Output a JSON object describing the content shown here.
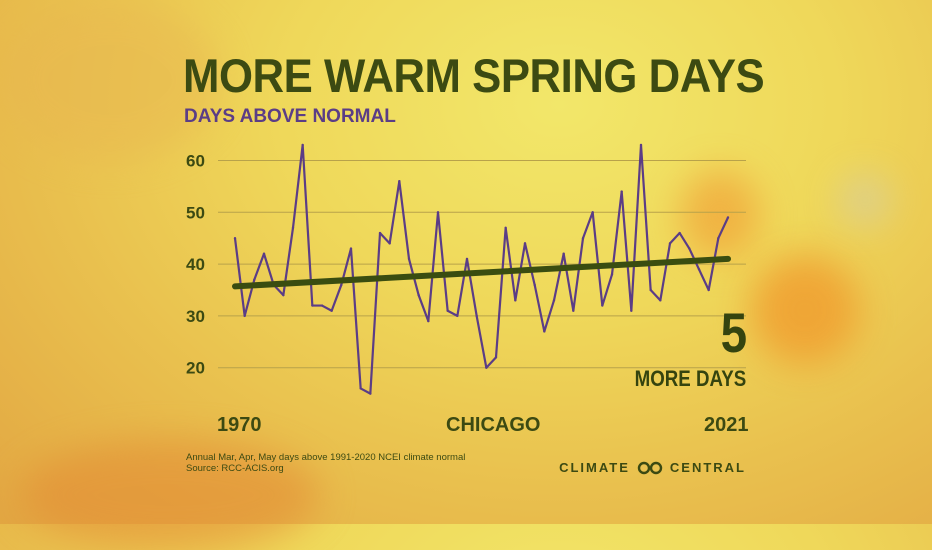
{
  "title": "MORE WARM SPRING DAYS",
  "subtitle": "DAYS ABOVE NORMAL",
  "annotation": {
    "number": "5",
    "text": "MORE DAYS"
  },
  "x_start_label": "1970",
  "x_center_label": "CHICAGO",
  "x_end_label": "2021",
  "footnote": {
    "line1": "Annual Mar, Apr, May days above 1991-2020 NCEI climate normal",
    "line2": "Source:  RCC-ACIS.org"
  },
  "brand": {
    "left": "CLIMATE",
    "right": "CENTRAL",
    "icon": "climate-central-logo-icon"
  },
  "colors": {
    "series": "#5b3d86",
    "trend": "#3a4d10",
    "text": "#3c4a12",
    "grid": "#b8a24a"
  },
  "chart_data": {
    "type": "line",
    "title": "MORE WARM SPRING DAYS",
    "subtitle": "DAYS ABOVE NORMAL",
    "xlabel": "",
    "ylabel": "",
    "xlim": [
      1970,
      2021
    ],
    "ylim": [
      14,
      64
    ],
    "yticks": [
      20,
      30,
      40,
      50,
      60
    ],
    "grid": true,
    "x": [
      1970,
      1971,
      1972,
      1973,
      1974,
      1975,
      1976,
      1977,
      1978,
      1979,
      1980,
      1981,
      1982,
      1983,
      1984,
      1985,
      1986,
      1987,
      1988,
      1989,
      1990,
      1991,
      1992,
      1993,
      1994,
      1995,
      1996,
      1997,
      1998,
      1999,
      2000,
      2001,
      2002,
      2003,
      2004,
      2005,
      2006,
      2007,
      2008,
      2009,
      2010,
      2011,
      2012,
      2013,
      2014,
      2015,
      2016,
      2017,
      2018,
      2019,
      2020,
      2021
    ],
    "series": [
      {
        "values": [
          45,
          30,
          37,
          42,
          36,
          34,
          47,
          63,
          32,
          32,
          31,
          36,
          43,
          16,
          15,
          46,
          44,
          56,
          41,
          34,
          29,
          50,
          31,
          30,
          41,
          30,
          20,
          22,
          47,
          33,
          44,
          36,
          27,
          33,
          42,
          31,
          45,
          50,
          32,
          38,
          54,
          31,
          63,
          35,
          33,
          44,
          46,
          43,
          39,
          35,
          45,
          49
        ]
      }
    ],
    "trend": {
      "x": [
        1970,
        2021
      ],
      "y": [
        35.7,
        41.0
      ]
    }
  }
}
